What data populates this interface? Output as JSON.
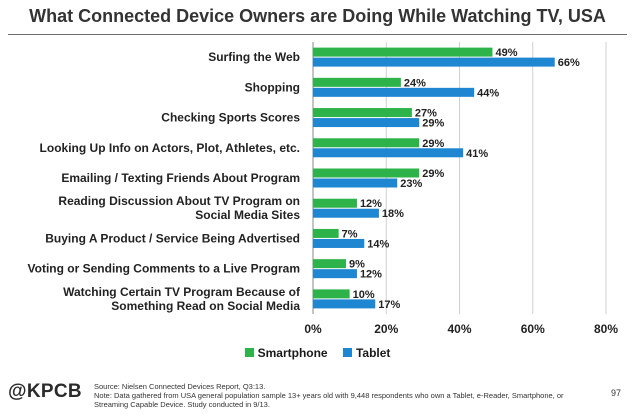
{
  "chart_data": {
    "type": "bar",
    "orientation": "horizontal",
    "title": "What Connected Device Owners are Doing While Watching TV, USA",
    "categories": [
      "Surfing the Web",
      "Shopping",
      "Checking Sports Scores",
      "Looking Up Info on Actors, Plot, Athletes, etc.",
      [
        "Emailing / Texting Friends About Program"
      ],
      [
        "Reading Discussion About TV Program on",
        "Social Media Sites"
      ],
      "Buying A Product / Service Being Advertised",
      "Voting or Sending Comments to a Live Program",
      [
        "Watching Certain TV Program Because of",
        "Something Read on Social Media"
      ]
    ],
    "series": [
      {
        "name": "Smartphone",
        "color": "#2db34a",
        "values": [
          49,
          24,
          27,
          29,
          29,
          12,
          7,
          9,
          10
        ]
      },
      {
        "name": "Tablet",
        "color": "#1f86d1",
        "values": [
          66,
          44,
          29,
          41,
          23,
          18,
          14,
          12,
          17
        ]
      }
    ],
    "xlim": [
      0,
      80
    ],
    "xticks": [
      "0%",
      "20%",
      "40%",
      "60%",
      "80%"
    ],
    "value_suffix": "%",
    "grid": true,
    "legend_position": "bottom"
  },
  "footer": {
    "logo": "@KPCB",
    "source": "Source: Nielsen Connected Devices Report, Q3:13.",
    "note": "Note: Data gathered from USA general population sample 13+ years old with 9,448 respondents who own a Tablet, e-Reader, Smartphone, or Streaming Capable Device. Study conducted in 9/13.",
    "page_number": "97"
  }
}
